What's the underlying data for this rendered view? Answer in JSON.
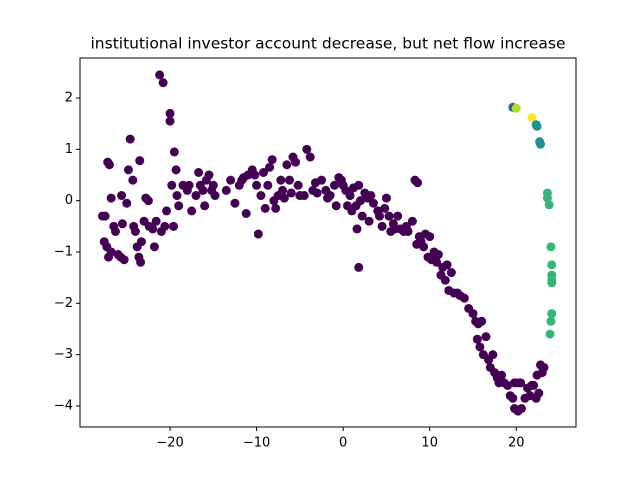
{
  "chart_data": {
    "type": "scatter",
    "title": "institutional investor account decrease, but net flow increase",
    "xlim": [
      -30.4,
      26.9
    ],
    "ylim": [
      -4.41,
      2.78
    ],
    "xticks": [
      {
        "value": -20,
        "label": "−20"
      },
      {
        "value": -10,
        "label": "−10"
      },
      0,
      10,
      20
    ],
    "yticks": [
      {
        "value": -4,
        "label": "−4"
      },
      {
        "value": -3,
        "label": "−3"
      },
      {
        "value": -2,
        "label": "−2"
      },
      {
        "value": -1,
        "label": "−1"
      },
      0,
      1,
      2
    ],
    "series": [
      {
        "color": "#440154",
        "x": [
          -27.8,
          -27.5,
          -27.6,
          -27.3,
          -27.2,
          -27,
          -26.8,
          -27.1,
          -26.8,
          -26.5,
          -26.3,
          -26,
          -25.7,
          -25.5,
          -25.3,
          -25.6,
          -25,
          -24.8,
          -24.6,
          -24.3,
          -24.2,
          -24,
          -23.8,
          -23.6,
          -23.4,
          -23.3,
          -23,
          -22.8,
          -22.5,
          -22.4,
          -22,
          -21.8,
          -21.6,
          -21.2,
          -20.8,
          -21,
          -20.6,
          -20.4,
          -20,
          -20,
          -19.8,
          -19.6,
          -19.5,
          -19.3,
          -19.2,
          -19,
          -23.5,
          -18.5,
          -18,
          -17.8,
          -17.5,
          -17,
          -16.7,
          -16.5,
          -16.2,
          -16,
          -15.8,
          -15.5,
          -15.2,
          -15,
          -14.8,
          -13.5,
          -13,
          -12.5,
          -12,
          -11.7,
          -11.5,
          -11.2,
          -11,
          -10.5,
          -10.2,
          -10,
          -9.8,
          -9.5,
          -9.2,
          -9,
          -8.7,
          -8.5,
          -8.2,
          -8,
          -7.8,
          -7.5,
          -7.2,
          -7,
          -6.8,
          -6.5,
          -6.2,
          -6,
          -5.8,
          -5.5,
          -5.2,
          -5,
          -4.5,
          -4.2,
          -3.8,
          -3.5,
          -3.2,
          -3,
          -2.5,
          -2,
          -1.8,
          -1.5,
          -1,
          -0.8,
          -0.5,
          -0.2,
          0,
          0.3,
          0.5,
          0.8,
          1,
          1.2,
          1.5,
          1.8,
          1.6,
          1.8,
          2,
          2.2,
          2.5,
          2.8,
          3,
          3.2,
          3.5,
          4,
          4.2,
          4.5,
          4.8,
          5,
          5.3,
          5.5,
          5.8,
          6,
          6.3,
          6.6,
          7,
          7.3,
          7.5,
          8,
          8.3,
          8.6,
          8.5,
          8.8,
          9,
          9.3,
          9.5,
          9.8,
          10,
          10.2,
          10.5,
          10.8,
          11,
          11.3,
          11.5,
          11.8,
          12,
          12.2,
          12.5,
          12.8,
          13.2,
          13.5,
          14,
          14.5,
          15,
          15.3,
          15.6,
          16,
          15.5,
          15.8,
          16.2,
          16.5,
          16.8,
          17,
          17.3,
          17.5,
          17.8,
          18,
          18.3,
          18.6,
          19,
          19.3,
          19.6,
          19.8,
          20.2,
          20.5,
          19.8,
          20.2,
          20.6,
          21,
          21.3,
          21.6,
          22,
          22.3,
          22.6,
          22.4,
          22.8,
          23,
          23.2,
          21.8
        ],
        "values": [
          -0.3,
          -0.3,
          -0.8,
          -0.9,
          0.75,
          0.7,
          0.05,
          -1.1,
          -1.0,
          -0.5,
          -0.6,
          -1.05,
          -1.1,
          -0.45,
          -1.15,
          0.1,
          -0.05,
          0.6,
          1.2,
          0.4,
          -0.5,
          -0.6,
          -0.9,
          -1.1,
          -1.2,
          -0.8,
          -0.4,
          0.05,
          0,
          -0.5,
          -0.55,
          -0.9,
          -0.4,
          2.45,
          2.3,
          -0.6,
          -0.5,
          -0.2,
          1.7,
          1.55,
          0.3,
          -0.5,
          0.95,
          0.6,
          0.1,
          -0.1,
          0.78,
          0.3,
          0.2,
          0.3,
          -0.2,
          0.1,
          0.55,
          0.3,
          0.2,
          -0.1,
          0.4,
          0.5,
          0.2,
          0.3,
          0.1,
          0.2,
          0.4,
          -0.05,
          0.3,
          0.4,
          0.45,
          -0.25,
          0.5,
          0.6,
          0.5,
          0.3,
          -0.65,
          0.1,
          0.55,
          -0.15,
          0.3,
          0.65,
          0.8,
          0,
          -0.15,
          0.1,
          0.4,
          0.2,
          0.05,
          0.7,
          0.4,
          0.15,
          0.85,
          0.75,
          0.3,
          0.1,
          0.1,
          1.0,
          0.85,
          0.2,
          0.35,
          0.15,
          0.4,
          0.2,
          0.05,
          0.1,
          0.3,
          -0.1,
          0.45,
          0.4,
          0.3,
          0.2,
          -0.1,
          0.1,
          -0.2,
          0.25,
          -0.1,
          0.3,
          -0.55,
          -1.3,
          0,
          -0.3,
          0.15,
          0.05,
          -0.4,
          0.1,
          -0.05,
          -0.2,
          -0.3,
          -0.5,
          -0.15,
          0.05,
          -0.3,
          -0.6,
          -0.45,
          -0.55,
          -0.3,
          -0.55,
          -0.6,
          -0.5,
          -0.6,
          -0.4,
          0.4,
          0.35,
          -0.85,
          -0.7,
          -0.8,
          -0.9,
          -0.65,
          -1.1,
          -0.7,
          -1.15,
          -1.0,
          -1.2,
          -1.05,
          -1.45,
          -1.3,
          -1.55,
          -1.25,
          -1.75,
          -1.4,
          -1.8,
          -1.8,
          -1.85,
          -1.9,
          -2.1,
          -2.2,
          -2.35,
          -2.4,
          -2.35,
          -2.7,
          -2.85,
          -3.0,
          -2.65,
          -3.1,
          -3.25,
          -3.0,
          -3.35,
          -3.45,
          -3.55,
          -3.4,
          -3.55,
          -3.6,
          -3.8,
          -3.85,
          -3.55,
          -3.55,
          -3.55,
          -4.05,
          -4.1,
          -4.05,
          -3.85,
          -3.65,
          -3.8,
          -3.6,
          -3.85,
          -3.75,
          -3.4,
          -3.2,
          -3.35,
          -3.25,
          -3.6
        ]
      },
      {
        "color": "#31688e",
        "x": [
          19.6
        ],
        "values": [
          1.82
        ]
      },
      {
        "color": "#b5de2b",
        "x": [
          20
        ],
        "values": [
          1.8
        ]
      },
      {
        "color": "#fde725",
        "x": [
          21.8
        ],
        "values": [
          1.62
        ]
      },
      {
        "color": "#21918c",
        "x": [
          22.3,
          22.4,
          22.7,
          22.8
        ],
        "values": [
          1.48,
          1.45,
          1.15,
          1.1
        ]
      },
      {
        "color": "#35b779",
        "x": [
          23.6,
          23.6,
          23.8,
          24,
          24.1,
          24.1,
          24.1,
          24.1,
          24.1,
          24,
          23.9
        ],
        "values": [
          0.15,
          0.05,
          -0.08,
          -0.9,
          -1.25,
          -1.45,
          -1.55,
          -1.6,
          -2.2,
          -2.35,
          -2.6
        ]
      }
    ]
  }
}
